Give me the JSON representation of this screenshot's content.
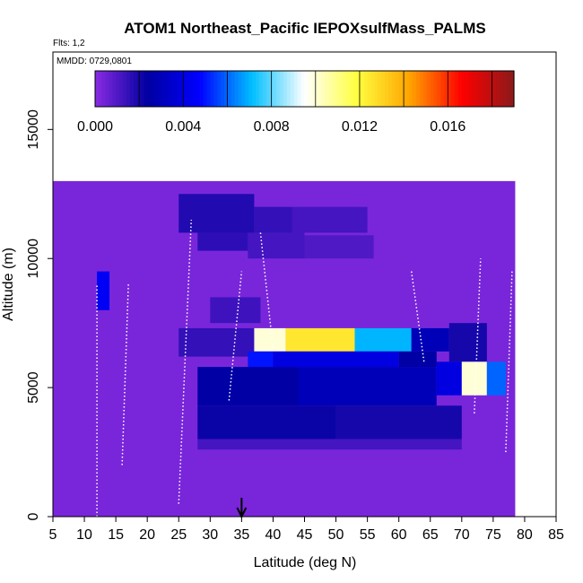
{
  "chart_data": {
    "type": "heatmap",
    "title": "ATOM1 Northeast_Pacific IEPOXsulfMass_PALMS",
    "flights_label": "Flts: 1,2",
    "dates_label": "MMDD: 0729,0801",
    "xlabel": "Latitude (deg N)",
    "ylabel": "Altitude (m)",
    "xlim": [
      5,
      85
    ],
    "ylim": [
      0,
      18000
    ],
    "x_ticks": [
      "5",
      "10",
      "15",
      "20",
      "25",
      "30",
      "35",
      "40",
      "45",
      "50",
      "55",
      "60",
      "65",
      "70",
      "75",
      "80",
      "85"
    ],
    "y_ticks": [
      "0",
      "5000",
      "10000",
      "15000"
    ],
    "y_tick_values": [
      0,
      5000,
      10000,
      15000
    ],
    "colorbar": {
      "range": [
        0,
        0.019
      ],
      "tick_labels": [
        "0.000",
        "0.004",
        "0.008",
        "0.012",
        "0.016"
      ],
      "tick_values": [
        0,
        0.004,
        0.008,
        0.012,
        0.016
      ],
      "colors": [
        "#8a2be2",
        "#0000a0",
        "#0000ff",
        "#00bfff",
        "#ffffff",
        "#ffff40",
        "#ffa500",
        "#ff0000",
        "#8b1a1a"
      ]
    },
    "arrow_latitude": 35,
    "data_region": {
      "lat": [
        5,
        78.5
      ],
      "alt": [
        0,
        13000
      ]
    },
    "background_value": 0.0003,
    "cells": [
      {
        "lat": [
          25,
          37
        ],
        "alt": [
          11000,
          12500
        ],
        "value": 0.0018
      },
      {
        "lat": [
          37,
          43
        ],
        "alt": [
          11000,
          12000
        ],
        "value": 0.0015
      },
      {
        "lat": [
          43,
          55
        ],
        "alt": [
          11000,
          12000
        ],
        "value": 0.0012
      },
      {
        "lat": [
          28,
          36
        ],
        "alt": [
          10300,
          11000
        ],
        "value": 0.0016
      },
      {
        "lat": [
          36,
          45
        ],
        "alt": [
          10000,
          11000
        ],
        "value": 0.0012
      },
      {
        "lat": [
          45,
          56
        ],
        "alt": [
          10000,
          10900
        ],
        "value": 0.001
      },
      {
        "lat": [
          12,
          14
        ],
        "alt": [
          8000,
          9500
        ],
        "value": 0.0045
      },
      {
        "lat": [
          30,
          38
        ],
        "alt": [
          7500,
          8500
        ],
        "value": 0.0013
      },
      {
        "lat": [
          25,
          37
        ],
        "alt": [
          6200,
          7300
        ],
        "value": 0.0015
      },
      {
        "lat": [
          37,
          42
        ],
        "alt": [
          6400,
          7300
        ],
        "value": 0.01
      },
      {
        "lat": [
          42,
          53
        ],
        "alt": [
          6400,
          7300
        ],
        "value": 0.0125
      },
      {
        "lat": [
          53,
          62
        ],
        "alt": [
          6400,
          7300
        ],
        "value": 0.007
      },
      {
        "lat": [
          62,
          68
        ],
        "alt": [
          6400,
          7300
        ],
        "value": 0.003
      },
      {
        "lat": [
          68,
          74
        ],
        "alt": [
          6000,
          7500
        ],
        "value": 0.002
      },
      {
        "lat": [
          36,
          40
        ],
        "alt": [
          5800,
          6400
        ],
        "value": 0.005
      },
      {
        "lat": [
          40,
          60
        ],
        "alt": [
          5800,
          6400
        ],
        "value": 0.004
      },
      {
        "lat": [
          60,
          66
        ],
        "alt": [
          5800,
          6400
        ],
        "value": 0.0025
      },
      {
        "lat": [
          66,
          70
        ],
        "alt": [
          4700,
          6000
        ],
        "value": 0.004
      },
      {
        "lat": [
          70,
          74
        ],
        "alt": [
          4700,
          6000
        ],
        "value": 0.01
      },
      {
        "lat": [
          74,
          77
        ],
        "alt": [
          4700,
          6000
        ],
        "value": 0.006
      },
      {
        "lat": [
          28,
          44
        ],
        "alt": [
          4300,
          5800
        ],
        "value": 0.0025
      },
      {
        "lat": [
          44,
          66
        ],
        "alt": [
          4300,
          5800
        ],
        "value": 0.003
      },
      {
        "lat": [
          28,
          50
        ],
        "alt": [
          3000,
          4300
        ],
        "value": 0.0022
      },
      {
        "lat": [
          50,
          70
        ],
        "alt": [
          3000,
          4300
        ],
        "value": 0.002
      },
      {
        "lat": [
          28,
          70
        ],
        "alt": [
          2600,
          3000
        ],
        "value": 0.0012
      }
    ]
  }
}
